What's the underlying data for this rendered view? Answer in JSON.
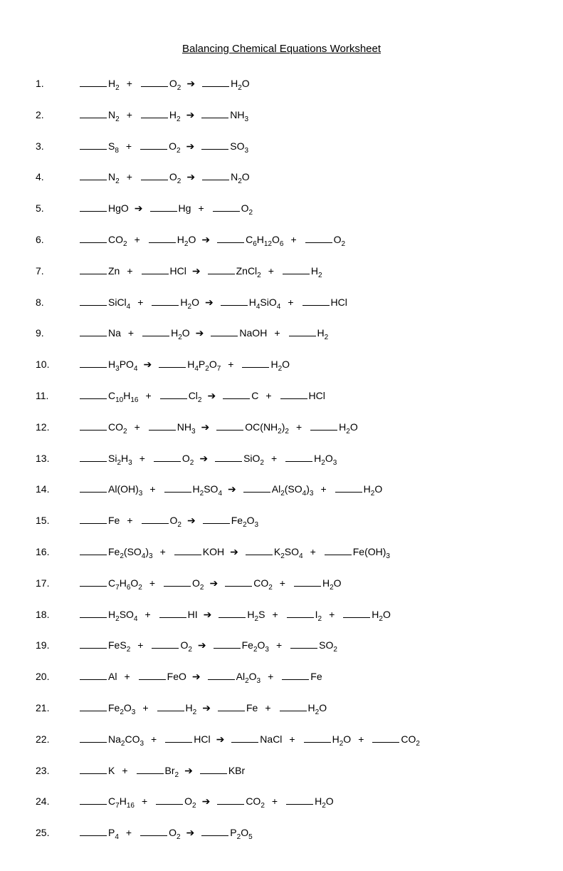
{
  "title": "Balancing Chemical Equations Worksheet",
  "font_family": "Arial, sans-serif",
  "text_color": "#000000",
  "background_color": "#ffffff",
  "title_fontsize": 15,
  "body_fontsize": 14,
  "blank_width": 38,
  "problems": [
    {
      "n": "1.",
      "reactants": [
        {
          "f": "H",
          "s": "2"
        },
        {
          "f": "O",
          "s": "2"
        }
      ],
      "products": [
        {
          "f": "H",
          "s": "2",
          "f2": "O"
        }
      ]
    },
    {
      "n": "2.",
      "reactants": [
        {
          "f": "N",
          "s": "2"
        },
        {
          "f": "H",
          "s": "2"
        }
      ],
      "products": [
        {
          "f": "NH",
          "s": "3"
        }
      ]
    },
    {
      "n": "3.",
      "reactants": [
        {
          "f": "S",
          "s": "8"
        },
        {
          "f": "O",
          "s": "2"
        }
      ],
      "products": [
        {
          "f": "SO",
          "s": "3"
        }
      ]
    },
    {
      "n": "4.",
      "reactants": [
        {
          "f": "N",
          "s": "2"
        },
        {
          "f": "O",
          "s": "2"
        }
      ],
      "products": [
        {
          "f": "N",
          "s": "2",
          "f2": "O"
        }
      ]
    },
    {
      "n": "5.",
      "reactants": [
        {
          "f": "HgO"
        }
      ],
      "products": [
        {
          "f": "Hg"
        },
        {
          "f": "O",
          "s": "2"
        }
      ]
    },
    {
      "n": "6.",
      "reactants": [
        {
          "f": "CO",
          "s": "2"
        },
        {
          "f": "H",
          "s": "2",
          "f2": "O"
        }
      ],
      "products": [
        {
          "f": "C",
          "s": "6",
          "f2": "H",
          "s2": "12",
          "f3": "O",
          "s3": "6"
        },
        {
          "f": "O",
          "s": "2"
        }
      ]
    },
    {
      "n": "7.",
      "reactants": [
        {
          "f": "Zn"
        },
        {
          "f": "HCl"
        }
      ],
      "products": [
        {
          "f": "ZnCl",
          "s": "2"
        },
        {
          "f": "H",
          "s": "2"
        }
      ]
    },
    {
      "n": "8.",
      "reactants": [
        {
          "f": "SiCl",
          "s": "4"
        },
        {
          "f": "H",
          "s": "2",
          "f2": "O"
        }
      ],
      "products": [
        {
          "f": "H",
          "s": "4",
          "f2": "SiO",
          "s2": "4"
        },
        {
          "f": "HCl"
        }
      ]
    },
    {
      "n": "9.",
      "reactants": [
        {
          "f": "Na"
        },
        {
          "f": "H",
          "s": "2",
          "f2": "O"
        }
      ],
      "products": [
        {
          "f": "NaOH"
        },
        {
          "f": "H",
          "s": "2"
        }
      ]
    },
    {
      "n": "10.",
      "reactants": [
        {
          "f": "H",
          "s": "3",
          "f2": "PO",
          "s2": "4"
        }
      ],
      "products": [
        {
          "f": "H",
          "s": "4",
          "f2": "P",
          "s2": "2",
          "f3": "O",
          "s3": "7"
        },
        {
          "f": "H",
          "s": "2",
          "f2": "O"
        }
      ]
    },
    {
      "n": "11.",
      "reactants": [
        {
          "f": "C",
          "s": "10",
          "f2": "H",
          "s2": "16"
        },
        {
          "f": "Cl",
          "s": "2"
        }
      ],
      "products": [
        {
          "f": "C"
        },
        {
          "f": "HCl"
        }
      ]
    },
    {
      "n": "12.",
      "reactants": [
        {
          "f": "CO",
          "s": "2"
        },
        {
          "f": "NH",
          "s": "3"
        }
      ],
      "products": [
        {
          "f": "OC(NH",
          "s": "2",
          "f2": ")",
          "s2": "2"
        },
        {
          "f": "H",
          "s": "2",
          "f2": "O"
        }
      ]
    },
    {
      "n": "13.",
      "reactants": [
        {
          "f": "Si",
          "s": "2",
          "f2": "H",
          "s2": "3"
        },
        {
          "f": "O",
          "s": "2"
        }
      ],
      "products": [
        {
          "f": "SiO",
          "s": "2"
        },
        {
          "f": "H",
          "s": "2",
          "f2": "O",
          "s2": "3"
        }
      ]
    },
    {
      "n": "14.",
      "reactants": [
        {
          "f": "Al(OH)",
          "s": "3"
        },
        {
          "f": "H",
          "s": "2",
          "f2": "SO",
          "s2": "4"
        }
      ],
      "products": [
        {
          "f": "Al",
          "s": "2",
          "f2": "(SO",
          "s2": "4",
          "f3": ")",
          "s3": "3"
        },
        {
          "f": "H",
          "s": "2",
          "f2": "O"
        }
      ]
    },
    {
      "n": "15.",
      "reactants": [
        {
          "f": "Fe"
        },
        {
          "f": "O",
          "s": "2"
        }
      ],
      "products": [
        {
          "f": "Fe",
          "s": "2",
          "f2": "O",
          "s2": "3"
        }
      ]
    },
    {
      "n": "16.",
      "reactants": [
        {
          "f": "Fe",
          "s": "2",
          "f2": "(SO",
          "s2": "4",
          "f3": ")",
          "s3": "3"
        },
        {
          "f": "KOH"
        }
      ],
      "products": [
        {
          "f": "K",
          "s": "2",
          "f2": "SO",
          "s2": "4"
        },
        {
          "f": "Fe(OH)",
          "s": "3"
        }
      ]
    },
    {
      "n": "17.",
      "reactants": [
        {
          "f": "C",
          "s": "7",
          "f2": "H",
          "s2": "6",
          "f3": "O",
          "s3": "2"
        },
        {
          "f": "O",
          "s": "2"
        }
      ],
      "products": [
        {
          "f": "CO",
          "s": "2"
        },
        {
          "f": "H",
          "s": "2",
          "f2": "O"
        }
      ]
    },
    {
      "n": "18.",
      "reactants": [
        {
          "f": "H",
          "s": "2",
          "f2": "SO",
          "s2": "4"
        },
        {
          "f": "HI"
        }
      ],
      "products": [
        {
          "f": "H",
          "s": "2",
          "f2": "S"
        },
        {
          "f": "I",
          "s": "2"
        },
        {
          "f": "H",
          "s": "2",
          "f2": "O"
        }
      ]
    },
    {
      "n": "19.",
      "reactants": [
        {
          "f": "FeS",
          "s": "2"
        },
        {
          "f": "O",
          "s": "2"
        }
      ],
      "products": [
        {
          "f": "Fe",
          "s": "2",
          "f2": "O",
          "s2": "3"
        },
        {
          "f": "SO",
          "s": "2"
        }
      ]
    },
    {
      "n": "20.",
      "reactants": [
        {
          "f": "Al"
        },
        {
          "f": "FeO"
        }
      ],
      "products": [
        {
          "f": "Al",
          "s": "2",
          "f2": "O",
          "s2": "3"
        },
        {
          "f": "Fe"
        }
      ]
    },
    {
      "n": "21.",
      "reactants": [
        {
          "f": "Fe",
          "s": "2",
          "f2": "O",
          "s2": "3"
        },
        {
          "f": "H",
          "s": "2"
        }
      ],
      "products": [
        {
          "f": "Fe"
        },
        {
          "f": "H",
          "s": "2",
          "f2": "O"
        }
      ]
    },
    {
      "n": "22.",
      "reactants": [
        {
          "f": "Na",
          "s": "2",
          "f2": "CO",
          "s2": "3"
        },
        {
          "f": "HCl"
        }
      ],
      "products": [
        {
          "f": "NaCl"
        },
        {
          "f": "H",
          "s": "2",
          "f2": "O"
        },
        {
          "f": "CO",
          "s": "2"
        }
      ]
    },
    {
      "n": "23.",
      "reactants": [
        {
          "f": "K"
        },
        {
          "f": "Br",
          "s": "2"
        }
      ],
      "products": [
        {
          "f": "KBr"
        }
      ]
    },
    {
      "n": "24.",
      "reactants": [
        {
          "f": "C",
          "s": "7",
          "f2": "H",
          "s2": "16"
        },
        {
          "f": "O",
          "s": "2"
        }
      ],
      "products": [
        {
          "f": "CO",
          "s": "2"
        },
        {
          "f": "H",
          "s": "2",
          "f2": "O"
        }
      ]
    },
    {
      "n": "25.",
      "reactants": [
        {
          "f": "P",
          "s": "4"
        },
        {
          "f": "O",
          "s": "2"
        }
      ],
      "products": [
        {
          "f": "P",
          "s": "2",
          "f2": "O",
          "s2": "5"
        }
      ]
    }
  ]
}
